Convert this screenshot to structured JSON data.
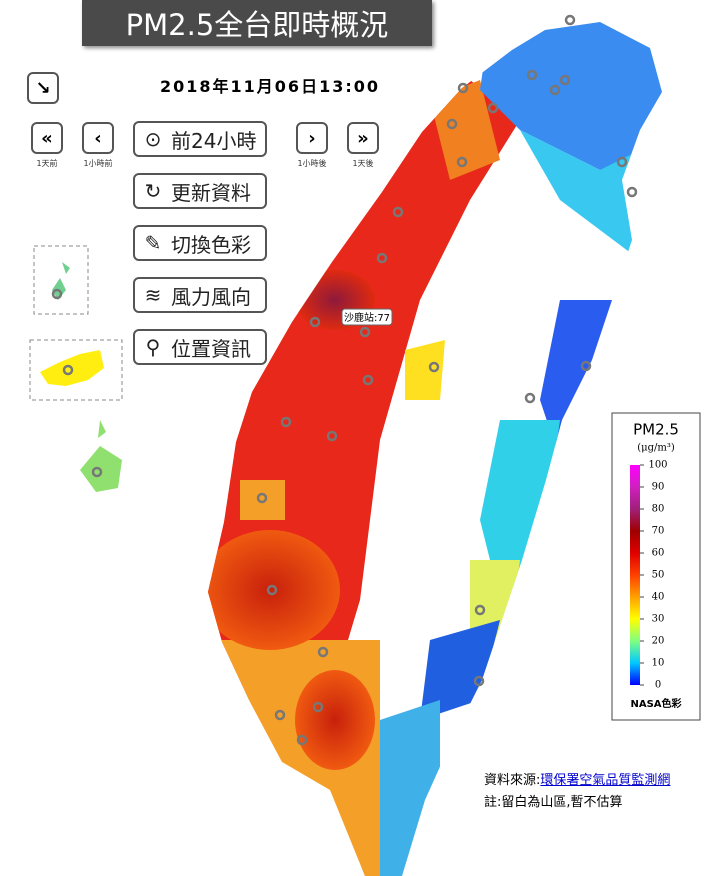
{
  "header": {
    "title": "PM2.5全台即時概況",
    "datetime": "2018年11月06日13:00"
  },
  "nav": [
    "1天前",
    "1小時前",
    "1小時後",
    "1天後"
  ],
  "buttons": [
    "前24小時",
    "更新資料",
    "切換色彩",
    "風力風向",
    "位置資訊"
  ],
  "map": {
    "station_label": "沙鹿站:77"
  },
  "legend": {
    "title": "PM2.5",
    "unit": "(μg/m³)",
    "ticks": [
      0,
      10,
      20,
      30,
      40,
      50,
      60,
      70,
      80,
      90,
      100
    ],
    "scheme": "NASA色彩"
  },
  "footer": {
    "source_prefix": "資料來源:",
    "source_link": "環保署空氣品質監測網",
    "note": "註:留白為山區,暫不估算"
  }
}
